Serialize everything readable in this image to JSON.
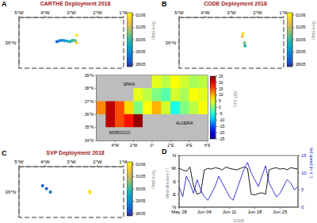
{
  "chart_data": [
    {
      "type": "scatter",
      "panel_label": "A",
      "title": "CARTHE Deployment 2018",
      "xlim": [
        -5,
        -1
      ],
      "xticks": [
        {
          "value": -5,
          "label": "5°W"
        },
        {
          "value": -4,
          "label": "4°W"
        },
        {
          "value": -3,
          "label": "3°W"
        },
        {
          "value": -2,
          "label": "2°W"
        },
        {
          "value": -1,
          "label": "1°W"
        }
      ],
      "ylim": [
        35.4,
        36.6
      ],
      "yticks": [
        {
          "value": 36,
          "label": "36°N"
        }
      ],
      "x": [
        -3.55,
        -3.45,
        -3.35,
        -3.25,
        -3.15,
        -3.05,
        -2.98,
        -2.92,
        -2.85,
        -2.8,
        -2.8
      ],
      "y": [
        36.03,
        36.05,
        36.06,
        36.05,
        36.04,
        36.03,
        36.05,
        36.06,
        36.05,
        36.18,
        36.0
      ],
      "time": [
        28.5,
        28.7,
        29.0,
        29.2,
        29.5,
        29.7,
        29.9,
        30.1,
        30.3,
        31.9,
        31.7
      ],
      "colorbar": {
        "label": "Time (day)",
        "range": [
          27.8,
          32.2
        ],
        "ticks": [
          {
            "value": 28,
            "label": "28/05"
          },
          {
            "value": 29,
            "label": "29/05"
          },
          {
            "value": 30,
            "label": "30/05"
          },
          {
            "value": 31,
            "label": "31/05"
          },
          {
            "value": 32,
            "label": "01/06"
          }
        ]
      }
    },
    {
      "type": "scatter",
      "panel_label": "B",
      "title": "CODE Deployment 2018",
      "xlim": [
        -5,
        -1
      ],
      "xticks": [
        {
          "value": -5,
          "label": "5°W"
        },
        {
          "value": -4,
          "label": "4°W"
        },
        {
          "value": -3,
          "label": "3°W"
        },
        {
          "value": -2,
          "label": "2°W"
        },
        {
          "value": -1,
          "label": "1°W"
        }
      ],
      "ylim": [
        35.4,
        36.6
      ],
      "yticks": [
        {
          "value": 36,
          "label": "36°N"
        }
      ],
      "x": [
        -2.55,
        -2.58,
        -2.5,
        -2.48
      ],
      "y": [
        36.22,
        36.15,
        36.0,
        35.93
      ],
      "time": [
        31.9,
        31.5,
        30.4,
        29.8
      ],
      "colorbar": {
        "label": "Time (day)",
        "range": [
          27.8,
          32.2
        ],
        "ticks": [
          {
            "value": 28,
            "label": "28/05"
          },
          {
            "value": 29,
            "label": "29/05"
          },
          {
            "value": 30,
            "label": "30/05"
          },
          {
            "value": 31,
            "label": "31/05"
          },
          {
            "value": 32,
            "label": "01/06"
          }
        ]
      }
    },
    {
      "type": "heatmap",
      "xlim": [
        -6,
        6
      ],
      "xticks": [
        {
          "value": -4,
          "label": "4°W"
        },
        {
          "value": -2,
          "label": "2°W"
        },
        {
          "value": 0,
          "label": "0°"
        },
        {
          "value": 2,
          "label": "2°E"
        },
        {
          "value": 4,
          "label": "4°E"
        },
        {
          "value": 6,
          "label": "6°E"
        }
      ],
      "ylim": [
        34,
        39
      ],
      "yticks": [
        {
          "value": 34,
          "label": "34°N"
        },
        {
          "value": 35,
          "label": "35°N"
        },
        {
          "value": 36,
          "label": "36°N"
        },
        {
          "value": 37,
          "label": "37°N"
        },
        {
          "value": 38,
          "label": "38°N"
        },
        {
          "value": 39,
          "label": "39°N"
        }
      ],
      "x": [
        -5.5,
        -4.5,
        -3.5,
        -2.5,
        -1.5,
        -0.5,
        0.5,
        1.5,
        2.5,
        3.5,
        4.5,
        5.5
      ],
      "y": [
        38.5,
        37.5,
        36.5,
        35.5,
        34.5
      ],
      "cells": [
        [
          null,
          null,
          null,
          null,
          null,
          null,
          5,
          3,
          6,
          4,
          2,
          3
        ],
        [
          null,
          null,
          null,
          null,
          5,
          3,
          0,
          -2,
          4,
          2,
          6,
          5
        ],
        [
          12,
          22,
          15,
          8,
          0,
          6,
          10,
          4,
          -5,
          0,
          3,
          6
        ],
        [
          null,
          22,
          15,
          18,
          24,
          null,
          null,
          null,
          null,
          null,
          null,
          null
        ],
        [
          null,
          null,
          null,
          null,
          null,
          null,
          null,
          null,
          null,
          null,
          null,
          null
        ]
      ],
      "colorbar": {
        "label": "ADT (cm)",
        "range": [
          -25,
          25
        ],
        "ticks": [
          -25,
          -20,
          -15,
          -10,
          -5,
          0,
          5,
          10,
          15,
          20,
          25
        ]
      },
      "region": {
        "x": [
          -5,
          -1
        ],
        "y": [
          35.2,
          36.8
        ]
      },
      "annotations": [
        {
          "text": "SPAIN",
          "x": -2.5,
          "y": 38.3
        },
        {
          "text": "MOROCCO",
          "x": -3.5,
          "y": 34.6
        },
        {
          "text": "ALGERIA",
          "x": 3.5,
          "y": 35.3
        }
      ]
    },
    {
      "type": "scatter",
      "panel_label": "C",
      "title": "SVP Deployment 2018",
      "xlim": [
        -5,
        -1
      ],
      "xticks": [
        {
          "value": -5,
          "label": "5°W"
        },
        {
          "value": -4,
          "label": "4°W"
        },
        {
          "value": -3,
          "label": "3°W"
        },
        {
          "value": -2,
          "label": "2°W"
        },
        {
          "value": -1,
          "label": "1°W"
        }
      ],
      "ylim": [
        35.4,
        36.6
      ],
      "yticks": [
        {
          "value": 36,
          "label": "36°N"
        }
      ],
      "x": [
        -4.1,
        -3.95,
        -3.8,
        -2.3,
        -2.28
      ],
      "y": [
        36.15,
        36.08,
        36.0,
        36.02,
        35.98
      ],
      "time": [
        28.3,
        28.4,
        28.6,
        31.9,
        32.0
      ],
      "colorbar": {
        "label": "Time (day)",
        "range": [
          27.8,
          32.2
        ],
        "ticks": [
          {
            "value": 28,
            "label": "28/05"
          },
          {
            "value": 29,
            "label": "29/05"
          },
          {
            "value": 30,
            "label": "30/05"
          },
          {
            "value": 31,
            "label": "31/05"
          },
          {
            "value": 32,
            "label": "01/06"
          }
        ]
      }
    },
    {
      "type": "line",
      "panel_label": "D",
      "x_label": "2018",
      "y_label": "Wind direction (°)",
      "y2_label": "Wind speed (m s⁻¹)",
      "x": [
        148,
        149,
        150,
        151,
        152,
        153,
        154,
        155,
        156,
        157,
        158,
        159,
        160,
        161,
        162,
        163,
        164,
        165,
        166,
        167,
        168,
        169,
        170,
        171,
        172,
        173,
        174,
        175,
        176,
        177,
        178,
        179,
        180,
        181
      ],
      "xlim": [
        148,
        181
      ],
      "xticks": [
        {
          "value": 148,
          "label": "May 28"
        },
        {
          "value": 155,
          "label": "Jun 04"
        },
        {
          "value": 162,
          "label": "Jun 11"
        },
        {
          "value": 169,
          "label": "Jun 18"
        },
        {
          "value": 176,
          "label": "Jun 25"
        }
      ],
      "ylim": [
        0,
        360
      ],
      "yticks": [
        {
          "value": 0,
          "label": "N"
        },
        {
          "value": 90,
          "label": "E"
        },
        {
          "value": 180,
          "label": "S"
        },
        {
          "value": 270,
          "label": "W"
        },
        {
          "value": 360,
          "label": "N"
        }
      ],
      "y2lim": [
        0,
        15
      ],
      "y2ticks": [
        0,
        5,
        10,
        15
      ],
      "series": [
        {
          "color": "#000000",
          "values": [
            270,
            260,
            250,
            280,
            150,
            90,
            100,
            260,
            270,
            265,
            275,
            270,
            260,
            280,
            270,
            265,
            260,
            270,
            280,
            270,
            90,
            85,
            95,
            100,
            90,
            260,
            270,
            275,
            265,
            270,
            260,
            275,
            270,
            265
          ]
        },
        {
          "color": "#2020d0",
          "axis": "y2",
          "values": [
            6,
            3,
            9,
            7,
            4,
            8,
            5,
            3,
            2,
            4,
            6,
            9,
            7,
            5,
            3,
            2,
            5,
            8,
            11,
            13,
            10,
            8,
            6,
            9,
            12,
            7,
            5,
            3,
            4,
            6,
            8,
            7,
            5,
            6
          ]
        }
      ]
    }
  ]
}
